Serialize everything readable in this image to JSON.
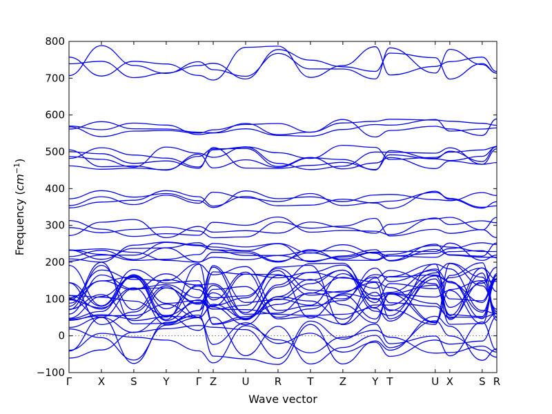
{
  "chart_data": {
    "type": "line",
    "xlabel": "Wave vector",
    "ylabel_prefix": "Frequency (",
    "ylabel_unit_base": "cm",
    "ylabel_unit_exp": "−1",
    "ylabel_suffix": ")",
    "ylim": [
      -100,
      800
    ],
    "yticks": [
      -100,
      0,
      100,
      200,
      300,
      400,
      500,
      600,
      700,
      800
    ],
    "ytick_labels": [
      "−100",
      "0",
      "100",
      "200",
      "300",
      "400",
      "500",
      "600",
      "700",
      "800"
    ],
    "kpoints": [
      "Γ",
      "X",
      "S",
      "Y",
      "Γ",
      "Z",
      "U",
      "R",
      "T",
      "Z",
      "Y",
      "T",
      "U",
      "X",
      "S",
      "R"
    ],
    "kpoint_positions": [
      0,
      1,
      2,
      3,
      4,
      4.45,
      5.45,
      6.45,
      7.45,
      8.45,
      9.45,
      9.9,
      11.3,
      11.75,
      12.75,
      13.2
    ],
    "zero_line": true,
    "line_color": "#0000ee",
    "series_groups": [
      {
        "name_hint": "top",
        "values_range": [
          690,
          790
        ]
      },
      {
        "name_hint": "upper-middle",
        "values_range": [
          540,
          590
        ]
      },
      {
        "name_hint": "middle",
        "values_range": [
          450,
          520
        ]
      },
      {
        "name_hint": "mid-lower",
        "values_range": [
          345,
          395
        ]
      },
      {
        "name_hint": "lower",
        "values_range": [
          265,
          325
        ]
      },
      {
        "name_hint": "low",
        "values_range": [
          200,
          255
        ]
      },
      {
        "name_hint": "very-low",
        "values_range": [
          30,
          200
        ]
      },
      {
        "name_hint": "imaginary",
        "values_range": [
          -80,
          60
        ]
      }
    ]
  }
}
